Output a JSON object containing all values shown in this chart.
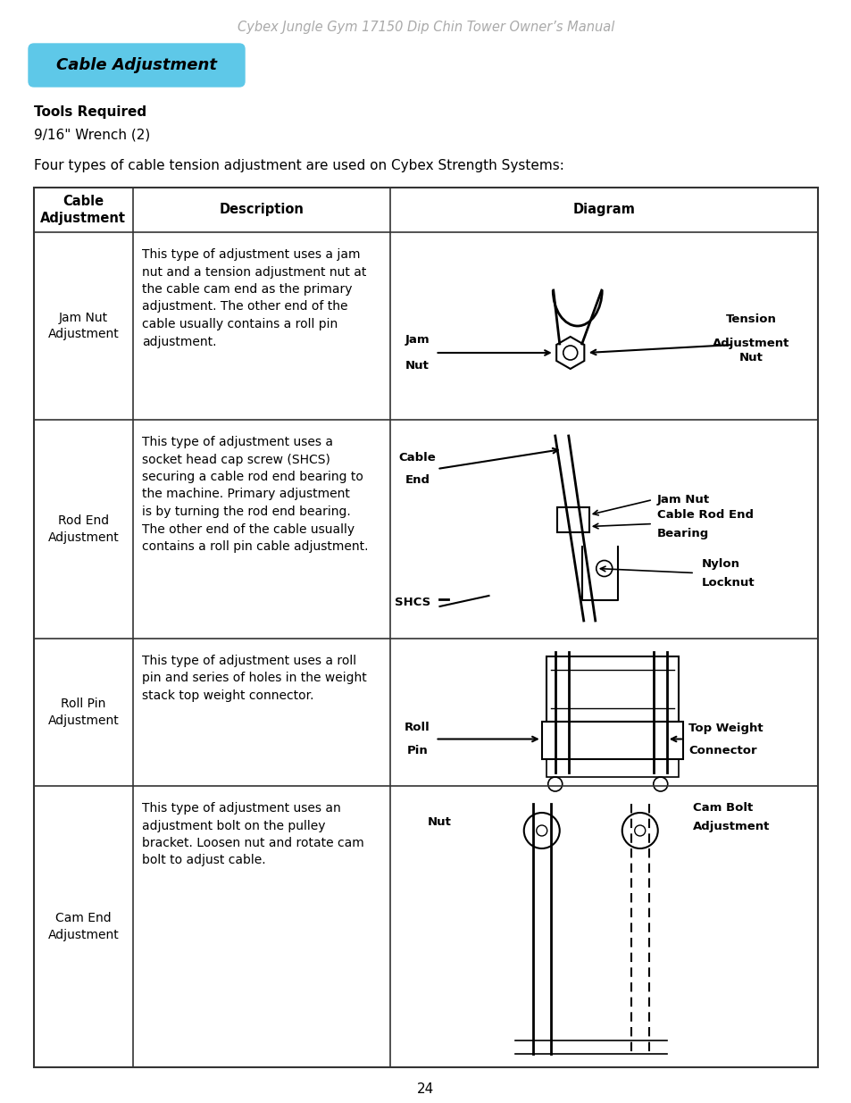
{
  "page_bg": "#ffffff",
  "header_text": "Cybex Jungle Gym 17150 Dip Chin Tower Owner’s Manual",
  "header_color": "#aaaaaa",
  "header_fontsize": 10.5,
  "section_title": "Cable Adjustment",
  "section_title_bg": "#5ec8e8",
  "section_title_color": "#000000",
  "tools_required_label": "Tools Required",
  "tools_required_value": "9/16\" Wrench (2)",
  "intro_text": "Four types of cable tension adjustment are used on Cybex Strength Systems:",
  "table_header_col1": "Cable\nAdjustment",
  "table_header_col2": "Description",
  "table_header_col3": "Diagram",
  "rows": [
    {
      "col1": "Jam Nut\nAdjustment",
      "col2": "This type of adjustment uses a jam\nnut and a tension adjustment nut at\nthe cable cam end as the primary\nadjustment. The other end of the\ncable usually contains a roll pin\nadjustment."
    },
    {
      "col1": "Rod End\nAdjustment",
      "col2": "This type of adjustment uses a\nsocket head cap screw (SHCS)\nsecuring a cable rod end bearing to\nthe machine. Primary adjustment\nis by turning the rod end bearing.\nThe other end of the cable usually\ncontains a roll pin cable adjustment."
    },
    {
      "col1": "Roll Pin\nAdjustment",
      "col2": "This type of adjustment uses a roll\npin and series of holes in the weight\nstack top weight connector."
    },
    {
      "col1": "Cam End\nAdjustment",
      "col2": "This type of adjustment uses an\nadjustment bolt on the pulley\nbracket. Loosen nut and rotate cam\nbolt to adjust cable."
    }
  ],
  "page_number": "24"
}
